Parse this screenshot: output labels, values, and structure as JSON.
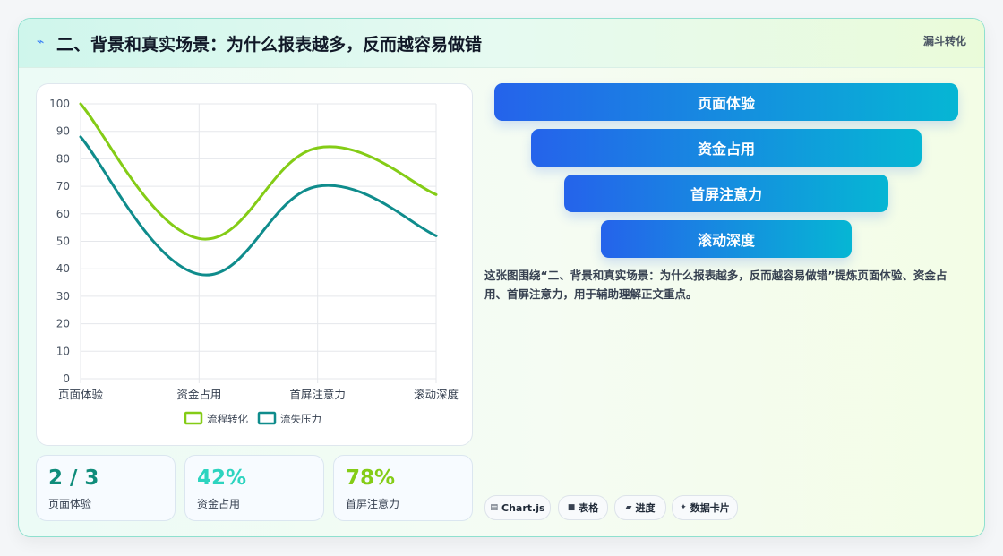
{
  "header": {
    "title": "二、背景和真实场景：为什么报表越多，反而越容易做错",
    "tag": "漏斗转化",
    "icon": "lightning-icon"
  },
  "chart_data": {
    "type": "line",
    "categories": [
      "页面体验",
      "资金占用",
      "首屏注意力",
      "滚动深度"
    ],
    "series": [
      {
        "name": "流程转化",
        "values": [
          100,
          51,
          84,
          67
        ],
        "color": "#84cc16"
      },
      {
        "name": "流失压力",
        "values": [
          88,
          38,
          70,
          52
        ],
        "color": "#0f8c8c"
      }
    ],
    "ylim": [
      0,
      100
    ],
    "yticks": [
      0,
      10,
      20,
      30,
      40,
      50,
      60,
      70,
      80,
      90,
      100
    ],
    "grid": true,
    "smooth": true,
    "legend_position": "bottom"
  },
  "stats": [
    {
      "value": "2 / 3",
      "label": "页面体验",
      "color": "#0f8c7a"
    },
    {
      "value": "42%",
      "label": "资金占用",
      "color": "#2dd4bf"
    },
    {
      "value": "78%",
      "label": "首屏注意力",
      "color": "#84cc16"
    }
  ],
  "funnel": [
    "页面体验",
    "资金占用",
    "首屏注意力",
    "滚动深度"
  ],
  "description": "这张图围绕“二、背景和真实场景：为什么报表越多，反而越容易做错”提炼页面体验、资金占用、首屏注意力，用于辅助理解正文重点。",
  "chips": [
    {
      "icon": "chart-icon",
      "glyph": "▤",
      "label": "Chart.js"
    },
    {
      "icon": "table-icon",
      "glyph": "■",
      "label": "表格"
    },
    {
      "icon": "progress-icon",
      "glyph": "▰",
      "label": "进度"
    },
    {
      "icon": "sparkle-icon",
      "glyph": "✦",
      "label": "数据卡片"
    }
  ]
}
